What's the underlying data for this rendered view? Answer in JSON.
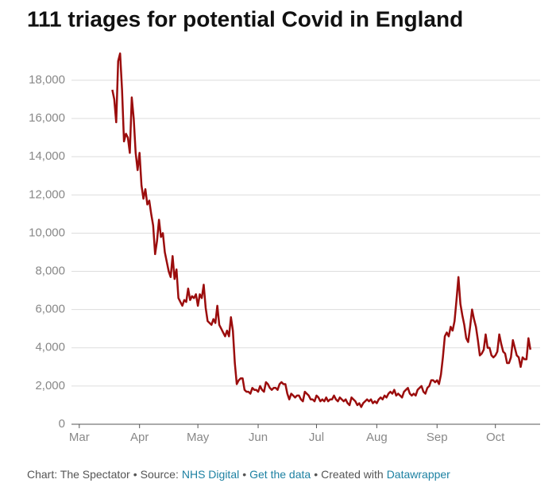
{
  "chart_data": {
    "type": "line",
    "title": "111 triages for potential Covid in England",
    "x": [
      17,
      18,
      19,
      20,
      21,
      22,
      23,
      24,
      25,
      26,
      27,
      28,
      29,
      30,
      31,
      32,
      33,
      34,
      35,
      36,
      37,
      38,
      39,
      40,
      41,
      42,
      43,
      44,
      45,
      46,
      47,
      48,
      49,
      50,
      51,
      52,
      53,
      54,
      55,
      56,
      57,
      58,
      59,
      60,
      61,
      62,
      63,
      64,
      65,
      66,
      67,
      68,
      69,
      70,
      71,
      72,
      73,
      74,
      75,
      76,
      77,
      78,
      79,
      80,
      81,
      82,
      83,
      84,
      85,
      86,
      87,
      88,
      89,
      90,
      91,
      92,
      93,
      94,
      95,
      96,
      97,
      98,
      99,
      100,
      101,
      102,
      103,
      104,
      105,
      106,
      107,
      108,
      109,
      110,
      111,
      112,
      113,
      114,
      115,
      116,
      117,
      118,
      119,
      120,
      121,
      122,
      123,
      124,
      125,
      126,
      127,
      128,
      129,
      130,
      131,
      132,
      133,
      134,
      135,
      136,
      137,
      138,
      139,
      140,
      141,
      142,
      143,
      144,
      145,
      146,
      147,
      148,
      149,
      150,
      151,
      152,
      153,
      154,
      155,
      156,
      157,
      158,
      159,
      160,
      161,
      162,
      163,
      164,
      165,
      166,
      167,
      168,
      169,
      170,
      171,
      172,
      173,
      174,
      175,
      176,
      177,
      178,
      179,
      180,
      181,
      182,
      183,
      184,
      185,
      186,
      187,
      188,
      189,
      190,
      191,
      192,
      193,
      194,
      195,
      196,
      197,
      198,
      199,
      200,
      201,
      202,
      203,
      204,
      205,
      206,
      207,
      208,
      209,
      210,
      211,
      212,
      213,
      214,
      215,
      216,
      217,
      218,
      219,
      220,
      221,
      222,
      223,
      224,
      225,
      226,
      227,
      228,
      229,
      230,
      231,
      232
    ],
    "values": [
      17500,
      17000,
      15800,
      19000,
      19400,
      17500,
      14800,
      15200,
      15000,
      14200,
      17100,
      16000,
      14200,
      13300,
      14200,
      12500,
      11800,
      12300,
      11500,
      11700,
      11000,
      10400,
      8900,
      9600,
      10700,
      9800,
      10000,
      9000,
      8500,
      8000,
      7700,
      8800,
      7600,
      8100,
      6600,
      6400,
      6200,
      6500,
      6400,
      7100,
      6500,
      6700,
      6600,
      6800,
      6200,
      6800,
      6600,
      7300,
      6100,
      5400,
      5300,
      5200,
      5500,
      5300,
      6200,
      5200,
      5000,
      4800,
      4600,
      4900,
      4600,
      5600,
      4900,
      3200,
      2100,
      2300,
      2400,
      2400,
      1800,
      1700,
      1700,
      1600,
      1900,
      1800,
      1800,
      1700,
      2000,
      1800,
      1700,
      2200,
      2100,
      1900,
      1800,
      1900,
      1900,
      1800,
      2100,
      2200,
      2100,
      2100,
      1600,
      1300,
      1600,
      1500,
      1400,
      1500,
      1500,
      1300,
      1200,
      1700,
      1600,
      1500,
      1300,
      1300,
      1200,
      1500,
      1400,
      1200,
      1300,
      1200,
      1400,
      1200,
      1300,
      1300,
      1500,
      1300,
      1200,
      1400,
      1300,
      1200,
      1300,
      1100,
      1000,
      1400,
      1300,
      1200,
      1000,
      1100,
      900,
      1100,
      1200,
      1300,
      1200,
      1300,
      1100,
      1200,
      1100,
      1300,
      1400,
      1300,
      1500,
      1400,
      1600,
      1700,
      1600,
      1800,
      1500,
      1600,
      1500,
      1400,
      1700,
      1800,
      1900,
      1600,
      1500,
      1600,
      1500,
      1800,
      1900,
      2000,
      1700,
      1600,
      1900,
      2000,
      2300,
      2300,
      2200,
      2300,
      2100,
      2600,
      3500,
      4600,
      4800,
      4600,
      5100,
      4900,
      5400,
      6500,
      7700,
      6300,
      5700,
      5200,
      4500,
      4300,
      5100,
      6000,
      5500,
      5100,
      4400,
      3600,
      3700,
      3900,
      4700,
      4000,
      4000,
      3600,
      3500,
      3600,
      3800,
      4700,
      4200,
      3800,
      3700,
      3200,
      3200,
      3500,
      4400,
      4000,
      3600,
      3500,
      3000,
      3500,
      3400,
      3400,
      4500,
      3900
    ],
    "color": "#9b0d0d",
    "xlim": [
      -4,
      237
    ],
    "xticks": [
      {
        "value": 0,
        "label": "Mar"
      },
      {
        "value": 31,
        "label": "Apr"
      },
      {
        "value": 61,
        "label": "May"
      },
      {
        "value": 92,
        "label": "Jun"
      },
      {
        "value": 122,
        "label": "Jul"
      },
      {
        "value": 153,
        "label": "Aug"
      },
      {
        "value": 184,
        "label": "Sep"
      },
      {
        "value": 214,
        "label": "Oct"
      }
    ],
    "ylim": [
      0,
      19500
    ],
    "yticks": [
      0,
      {
        "value": 2000,
        "label": "2,000"
      },
      {
        "value": 4000,
        "label": "4,000"
      },
      {
        "value": 6000,
        "label": "6,000"
      },
      {
        "value": 8000,
        "label": "8,000"
      },
      {
        "value": 10000,
        "label": "10,000"
      },
      {
        "value": 12000,
        "label": "12,000"
      },
      {
        "value": 14000,
        "label": "14,000"
      },
      {
        "value": 16000,
        "label": "16,000"
      },
      {
        "value": 18000,
        "label": "18,000"
      }
    ],
    "grid": true,
    "footer": [
      "Chart: The Spectator",
      "•",
      "Source:",
      "NHS Digital",
      "•",
      "Get the data",
      "•",
      "Created with",
      "Datawrapper"
    ],
    "footer_links": [
      false,
      false,
      false,
      true,
      false,
      true,
      false,
      false,
      true
    ]
  }
}
